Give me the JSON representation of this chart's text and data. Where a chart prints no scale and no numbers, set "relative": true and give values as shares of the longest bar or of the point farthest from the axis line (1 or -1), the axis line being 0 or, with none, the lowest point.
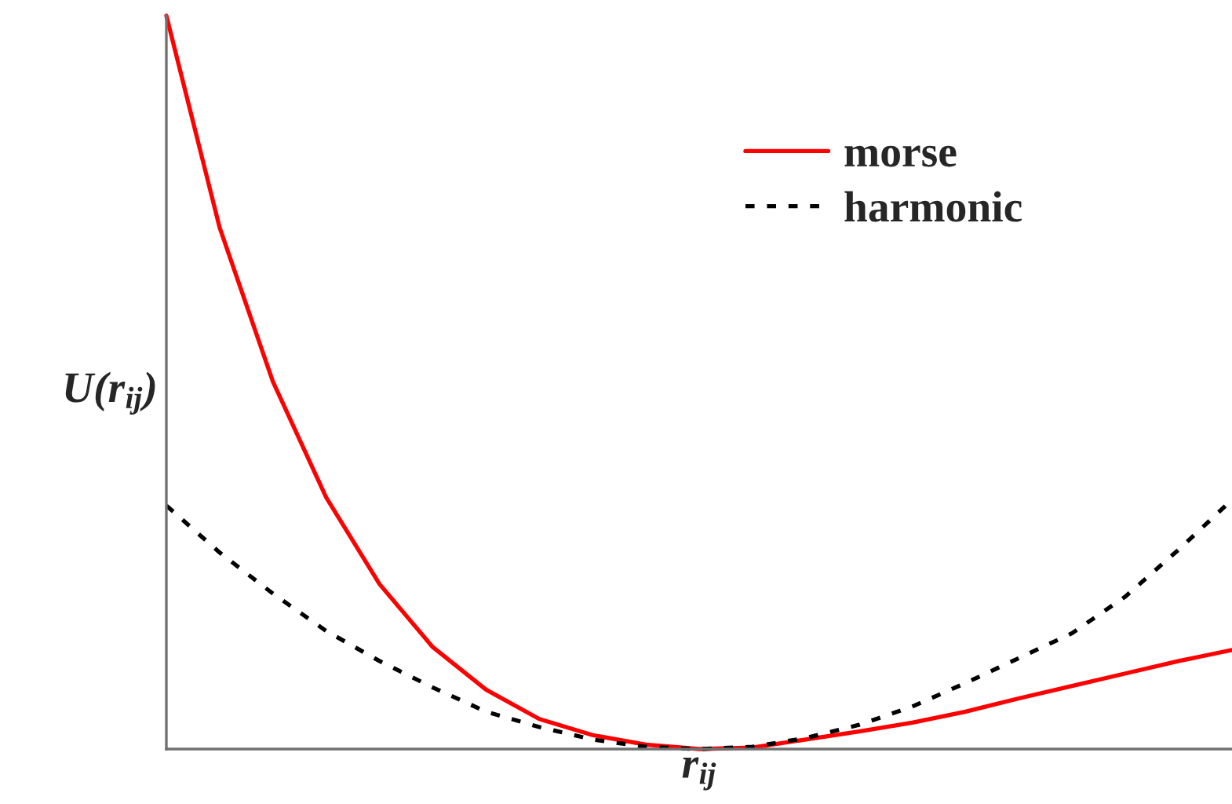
{
  "chart_data": {
    "type": "line",
    "xlabel": "r$_{ij}$",
    "ylabel": "U(r$_{ij}$)",
    "categories": [
      null,
      null,
      null,
      null,
      null,
      null,
      null,
      null,
      null,
      null,
      null,
      null,
      null,
      null,
      null,
      null,
      null,
      null,
      null,
      null,
      null
    ],
    "relative": true,
    "tick_labels": false,
    "legend": "top right",
    "series": [
      {
        "name": "morse",
        "color": "#ff0000",
        "line_style": "solid",
        "values": [
          1.0,
          0.711,
          0.501,
          0.343,
          0.225,
          0.139,
          0.081,
          0.041,
          0.019,
          0.006,
          0.0,
          0.002,
          0.013,
          0.024,
          0.036,
          0.051,
          0.069,
          0.086,
          0.103,
          0.12,
          0.135
        ]
      },
      {
        "name": "harmonic",
        "color": "#000000",
        "line_style": "dashed",
        "values": [
          0.332,
          0.268,
          0.212,
          0.161,
          0.12,
          0.084,
          0.051,
          0.03,
          0.013,
          0.003,
          0.0,
          0.003,
          0.015,
          0.033,
          0.058,
          0.09,
          0.124,
          0.158,
          0.208,
          0.272,
          0.34
        ]
      }
    ]
  }
}
